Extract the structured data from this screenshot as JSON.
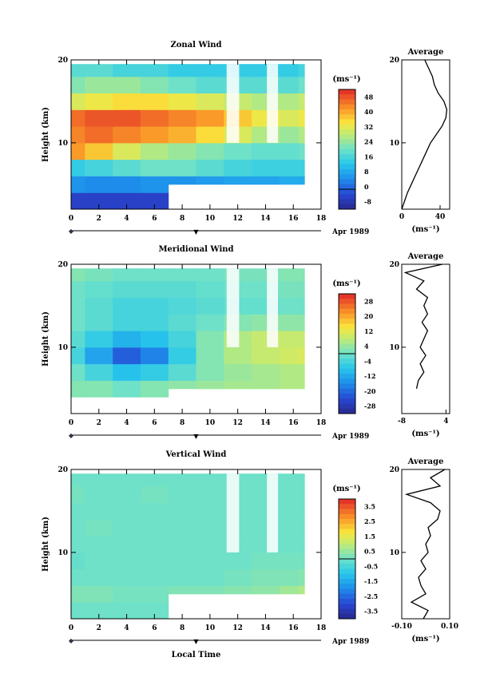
{
  "x_axis": {
    "ticks": [
      0,
      2,
      4,
      6,
      8,
      10,
      12,
      14,
      16,
      18
    ],
    "date_label": "Apr 1989",
    "marker": "▼",
    "xlabel": "Local Time",
    "xlim": [
      0,
      18
    ]
  },
  "colorbar_unit": "(ms⁻¹)",
  "avg_unit": "(ms⁻¹)",
  "chart_data": [
    {
      "type": "heatmap",
      "title": "Zonal Wind",
      "ylabel": "Height (km)",
      "yticks": [
        10,
        20
      ],
      "ylim": [
        2,
        20
      ],
      "x": [
        0,
        2,
        4,
        6,
        8,
        10,
        12,
        14,
        16,
        16.8
      ],
      "y": [
        3,
        5,
        7,
        9,
        11,
        13,
        15,
        17,
        19
      ],
      "data_extent": {
        "x": [
          0,
          16.8
        ],
        "y_top": 19.5,
        "early_bottom": 2,
        "late_bottom": 5,
        "late_start": 6.8
      },
      "z": [
        [
          -4,
          -4,
          -4,
          -4,
          null,
          null,
          null,
          null,
          null,
          null
        ],
        [
          6,
          5,
          5,
          6,
          6,
          7,
          8,
          8,
          9,
          9
        ],
        [
          14,
          16,
          18,
          20,
          20,
          18,
          16,
          15,
          15,
          15
        ],
        [
          40,
          36,
          30,
          26,
          24,
          22,
          20,
          19,
          19,
          20
        ],
        [
          42,
          44,
          42,
          40,
          38,
          34,
          30,
          26,
          24,
          26
        ],
        [
          44,
          46,
          46,
          44,
          42,
          40,
          36,
          32,
          30,
          32
        ],
        [
          30,
          32,
          34,
          34,
          32,
          30,
          28,
          26,
          26,
          28
        ],
        [
          22,
          24,
          24,
          22,
          20,
          18,
          18,
          18,
          18,
          20
        ],
        [
          18,
          18,
          16,
          16,
          14,
          14,
          14,
          14,
          14,
          16
        ]
      ],
      "colorbar_ticks": [
        48,
        40,
        32,
        24,
        16,
        8,
        0,
        -8
      ],
      "clim": [
        -10,
        50
      ],
      "average": {
        "title": "Average",
        "xlim": [
          0,
          50
        ],
        "xticks": [
          0,
          40
        ],
        "yticks": [
          10,
          20
        ],
        "profile": {
          "y": [
            2,
            3,
            4,
            5,
            6,
            7,
            8,
            9,
            10,
            11,
            12,
            13,
            14,
            15,
            16,
            17,
            18,
            19,
            20
          ],
          "x": [
            0,
            3,
            6,
            10,
            14,
            18,
            22,
            26,
            30,
            36,
            42,
            46,
            47,
            44,
            38,
            34,
            32,
            28,
            24
          ]
        }
      }
    },
    {
      "type": "heatmap",
      "title": "Meridional Wind",
      "ylabel": "Height (km)",
      "yticks": [
        10,
        20
      ],
      "ylim": [
        2,
        20
      ],
      "x": [
        0,
        2,
        4,
        6,
        8,
        10,
        12,
        14,
        16,
        16.8
      ],
      "y": [
        5,
        7,
        9,
        11,
        13,
        15,
        17,
        19
      ],
      "data_extent": {
        "x": [
          0,
          16.8
        ],
        "y_top": 19.5,
        "early_bottom": 5,
        "late_bottom": 5,
        "late_start": 6.8
      },
      "z": [
        [
          2,
          2,
          0,
          2,
          3,
          4,
          5,
          5,
          6,
          6
        ],
        [
          0,
          -4,
          -8,
          -6,
          -2,
          2,
          4,
          5,
          6,
          6
        ],
        [
          -4,
          -12,
          -20,
          -16,
          -6,
          2,
          6,
          8,
          9,
          10
        ],
        [
          -2,
          -6,
          -10,
          -8,
          -4,
          2,
          6,
          8,
          8,
          8
        ],
        [
          0,
          -2,
          -4,
          -4,
          -2,
          0,
          2,
          3,
          3,
          3
        ],
        [
          0,
          -2,
          -4,
          -4,
          -3,
          -2,
          -1,
          -1,
          0,
          0
        ],
        [
          0,
          -1,
          -2,
          -2,
          -2,
          -1,
          0,
          0,
          1,
          1
        ],
        [
          2,
          1,
          0,
          0,
          0,
          0,
          1,
          1,
          2,
          2
        ]
      ],
      "colorbar_ticks": [
        28,
        20,
        12,
        4,
        -4,
        -12,
        -20,
        -28
      ],
      "clim": [
        -30,
        30
      ],
      "average": {
        "title": "Average",
        "xlim": [
          -8,
          5
        ],
        "xticks": [
          -8,
          4
        ],
        "yticks": [
          10,
          20
        ],
        "profile": {
          "y": [
            5,
            6,
            7,
            8,
            9,
            10,
            11,
            12,
            13,
            14,
            15,
            16,
            17,
            18,
            19,
            20
          ],
          "x": [
            -4,
            -3.5,
            -2,
            -3,
            -1.5,
            -3,
            -2,
            -1,
            -2.5,
            -1,
            -2,
            -1,
            -4,
            -2,
            -7,
            3
          ]
        }
      }
    },
    {
      "type": "heatmap",
      "title": "Vertical Wind",
      "ylabel": "Height (km)",
      "yticks": [
        10,
        20
      ],
      "ylim": [
        2,
        20
      ],
      "x": [
        0,
        2,
        4,
        6,
        8,
        10,
        12,
        14,
        16,
        16.8
      ],
      "y": [
        3,
        5,
        7,
        9,
        11,
        13,
        15,
        17,
        19
      ],
      "data_extent": {
        "x": [
          0,
          16.8
        ],
        "y_top": 19.5,
        "early_bottom": 2,
        "late_bottom": 5,
        "late_start": 6.8
      },
      "z": [
        [
          0,
          0,
          0,
          0,
          null,
          null,
          null,
          null,
          null,
          null
        ],
        [
          0.2,
          0.2,
          0.1,
          0.1,
          0.2,
          0.2,
          0.3,
          0.4,
          0.6,
          0.8
        ],
        [
          0,
          0,
          0,
          0,
          0,
          0,
          0.1,
          0.2,
          0.2,
          0.3
        ],
        [
          -0.1,
          0,
          0,
          0,
          0,
          0,
          0,
          0.1,
          0.1,
          0.1
        ],
        [
          0,
          0,
          0,
          0,
          0,
          0,
          0,
          0,
          0,
          0
        ],
        [
          0,
          0.1,
          0,
          0,
          0,
          0,
          0,
          0,
          0,
          0
        ],
        [
          0,
          0,
          0,
          0,
          0,
          0,
          0,
          0,
          0,
          0
        ],
        [
          0.1,
          0,
          0,
          0.1,
          0,
          0,
          0,
          0,
          0,
          0
        ],
        [
          0,
          0,
          0,
          0,
          0,
          0,
          0,
          0,
          0,
          0
        ]
      ],
      "colorbar_ticks": [
        3.5,
        2.5,
        1.5,
        0.5,
        -0.5,
        -1.5,
        -2.5,
        -3.5
      ],
      "clim": [
        -4,
        4
      ],
      "average": {
        "title": "Average",
        "xlim": [
          -0.1,
          0.1
        ],
        "xticks": [
          -0.1,
          0.1
        ],
        "xticklabels": [
          "-0.10",
          "0.10"
        ],
        "yticks": [
          10,
          20
        ],
        "profile": {
          "y": [
            2,
            3,
            4,
            5,
            6,
            7,
            8,
            9,
            10,
            11,
            12,
            13,
            14,
            15,
            16,
            17,
            18,
            19,
            20
          ],
          "x": [
            -0.01,
            0.01,
            -0.06,
            0.0,
            -0.02,
            -0.03,
            0.0,
            -0.02,
            0.01,
            0.0,
            0.02,
            0.01,
            0.05,
            0.06,
            0.02,
            -0.08,
            0.06,
            0.02,
            0.08
          ]
        }
      }
    }
  ]
}
